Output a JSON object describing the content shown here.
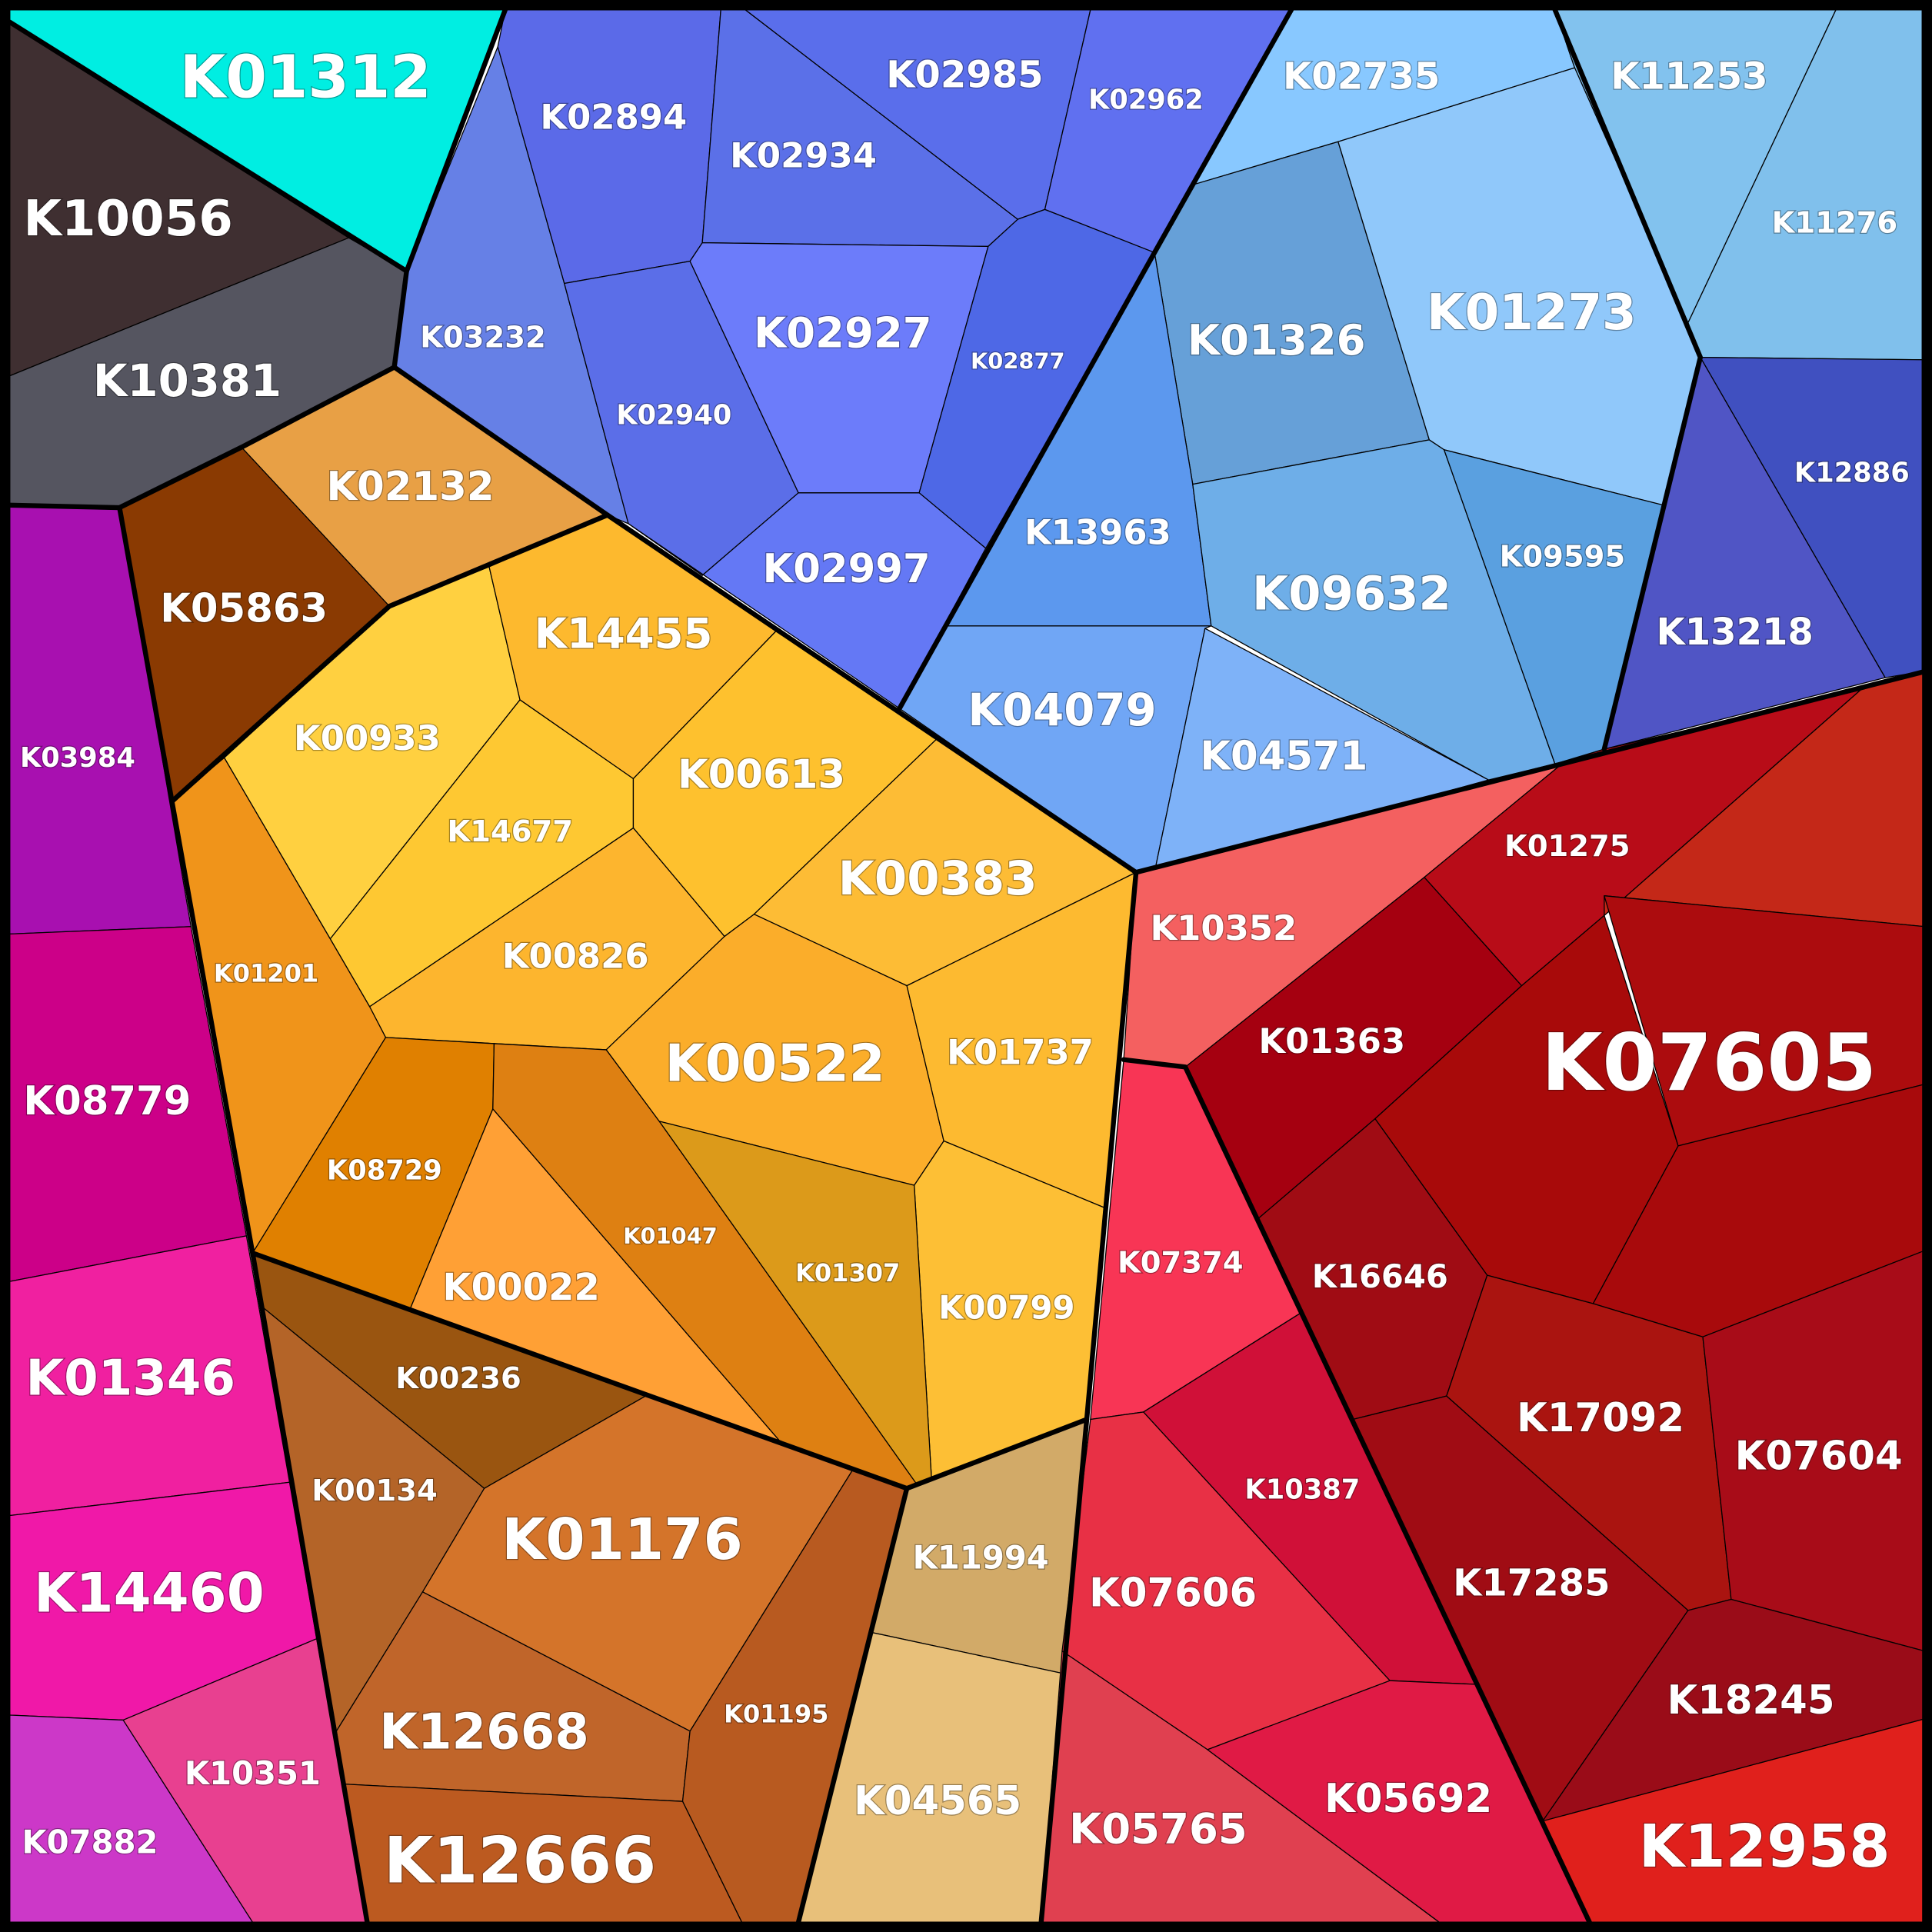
{
  "labels": [
    "K01312",
    "K10056",
    "K10381",
    "K02132",
    "K05863",
    "K03984",
    "K08779",
    "K01346",
    "K14460",
    "K07882",
    "K10351",
    "K03232",
    "K02894",
    "K02934",
    "K02985",
    "K02962",
    "K02940",
    "K02927",
    "K02877",
    "K02997",
    "K02735",
    "K11253",
    "K11276",
    "K01326",
    "K01273",
    "K13963",
    "K09632",
    "K09595",
    "K04079",
    "K04571",
    "K12886",
    "K13218",
    "K00933",
    "K14455",
    "K14677",
    "K00613",
    "K00826",
    "K00383",
    "K00522",
    "K01737",
    "K00799",
    "K01307",
    "K01201",
    "K08729",
    "K00022",
    "K01047",
    "K00236",
    "K00134",
    "K01176",
    "K12668",
    "K01195",
    "K12666",
    "K11994",
    "K04565",
    "K10352",
    "K07374",
    "K10387",
    "K07606",
    "K05765",
    "K05692",
    "K01363",
    "K01275",
    "K07605",
    "K16646",
    "K17092",
    "K07604",
    "K17285",
    "K18245",
    "K12958"
  ]
}
